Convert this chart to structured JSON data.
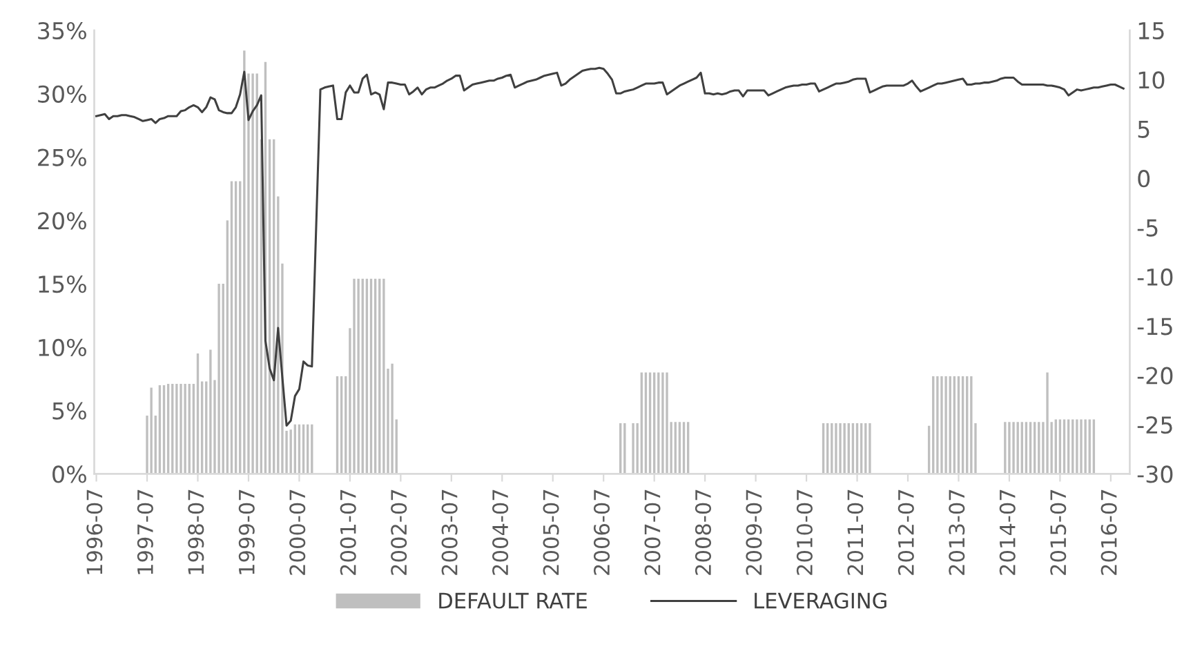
{
  "chart_data": {
    "type": "bar",
    "legend": "bottom",
    "categories": [
      "1996-07",
      null,
      null,
      null,
      null,
      null,
      null,
      null,
      null,
      null,
      null,
      null,
      "1997-07",
      null,
      null,
      null,
      null,
      null,
      null,
      null,
      null,
      null,
      null,
      null,
      "1998-07",
      null,
      null,
      null,
      null,
      null,
      null,
      null,
      null,
      null,
      null,
      null,
      "1999-07",
      null,
      null,
      null,
      null,
      null,
      null,
      null,
      null,
      null,
      null,
      null,
      "2000-07",
      null,
      null,
      null,
      null,
      null,
      null,
      null,
      null,
      null,
      null,
      null,
      "2001-07",
      null,
      null,
      null,
      null,
      null,
      null,
      null,
      null,
      null,
      null,
      null,
      "2002-07",
      null,
      null,
      null,
      null,
      null,
      null,
      null,
      null,
      null,
      null,
      null,
      "2003-07",
      null,
      null,
      null,
      null,
      null,
      null,
      null,
      null,
      null,
      null,
      null,
      "2004-07",
      null,
      null,
      null,
      null,
      null,
      null,
      null,
      null,
      null,
      null,
      null,
      "2005-07",
      null,
      null,
      null,
      null,
      null,
      null,
      null,
      null,
      null,
      null,
      null,
      "2006-07",
      null,
      null,
      null,
      null,
      null,
      null,
      null,
      null,
      null,
      null,
      null,
      "2007-07",
      null,
      null,
      null,
      null,
      null,
      null,
      null,
      null,
      null,
      null,
      null,
      "2008-07",
      null,
      null,
      null,
      null,
      null,
      null,
      null,
      null,
      null,
      null,
      null,
      "2009-07",
      null,
      null,
      null,
      null,
      null,
      null,
      null,
      null,
      null,
      null,
      null,
      "2010-07",
      null,
      null,
      null,
      null,
      null,
      null,
      null,
      null,
      null,
      null,
      null,
      "2011-07",
      null,
      null,
      null,
      null,
      null,
      null,
      null,
      null,
      null,
      null,
      null,
      "2012-07",
      null,
      null,
      null,
      null,
      null,
      null,
      null,
      null,
      null,
      null,
      null,
      "2013-07",
      null,
      null,
      null,
      null,
      null,
      null,
      null,
      null,
      null,
      null,
      null,
      "2014-07",
      null,
      null,
      null,
      null,
      null,
      null,
      null,
      null,
      null,
      null,
      null,
      "2015-07",
      null,
      null,
      null,
      null,
      null,
      null,
      null,
      null,
      null,
      null,
      null,
      "2016-07",
      null,
      null,
      null,
      null
    ],
    "ylim": [
      0,
      35
    ],
    "yticks": [
      {
        "value": 0,
        "label": "0%"
      },
      {
        "value": 5,
        "label": "5%"
      },
      {
        "value": 10,
        "label": "10%"
      },
      {
        "value": 15,
        "label": "15%"
      },
      {
        "value": 20,
        "label": "20%"
      },
      {
        "value": 25,
        "label": "25%"
      },
      {
        "value": 30,
        "label": "30%"
      },
      {
        "value": 35,
        "label": "35%"
      }
    ],
    "y2lim": [
      -30,
      15
    ],
    "y2ticks": [
      -30,
      -25,
      -20,
      -15,
      -10,
      -5,
      0,
      5,
      10,
      15
    ],
    "series": [
      {
        "name": "DEFAULT RATE",
        "color": "#bfbfbf",
        "values": [
          0,
          0,
          0,
          0,
          0,
          0,
          0,
          0,
          0,
          0,
          0,
          0,
          4.6,
          6.8,
          4.6,
          7.0,
          7.0,
          7.1,
          7.1,
          7.1,
          7.1,
          7.1,
          7.1,
          7.1,
          9.5,
          7.3,
          7.3,
          9.8,
          7.4,
          15.0,
          15.0,
          20.0,
          23.1,
          23.1,
          23.1,
          33.4,
          31.6,
          31.6,
          31.6,
          26.4,
          32.5,
          26.4,
          26.4,
          21.9,
          16.6,
          3.4,
          3.5,
          3.9,
          3.9,
          3.9,
          3.9,
          3.9,
          0,
          0,
          0,
          0,
          0,
          7.7,
          7.7,
          7.7,
          11.5,
          15.4,
          15.4,
          15.4,
          15.4,
          15.4,
          15.4,
          15.4,
          15.4,
          8.3,
          8.7,
          4.3,
          0,
          0,
          0,
          0,
          0,
          0,
          0,
          0,
          0,
          0,
          0,
          0,
          0,
          0,
          0,
          0,
          0,
          0,
          0,
          0,
          0,
          0,
          0,
          0,
          0,
          0,
          0,
          0,
          0,
          0,
          0,
          0,
          0,
          0,
          0,
          0,
          0,
          0,
          0,
          0,
          0,
          0,
          0,
          0,
          0,
          0,
          0,
          0,
          0,
          0,
          0,
          0,
          4.0,
          4.0,
          0,
          4.0,
          4.0,
          8.0,
          8.0,
          8.0,
          8.0,
          8.0,
          8.0,
          8.0,
          4.1,
          4.1,
          4.1,
          4.1,
          4.1,
          0,
          0,
          0,
          0,
          0,
          0,
          0,
          0,
          0,
          0,
          0,
          0,
          0,
          0,
          0,
          0,
          0,
          0,
          0,
          0,
          0,
          0,
          0,
          0,
          0,
          0,
          0,
          0,
          0,
          0,
          0,
          4.0,
          4.0,
          4.0,
          4.0,
          4.0,
          4.0,
          4.0,
          4.0,
          4.0,
          4.0,
          4.0,
          4.0,
          0,
          0,
          0,
          0,
          0,
          0,
          0,
          0,
          0,
          0,
          0,
          0,
          0,
          3.8,
          7.7,
          7.7,
          7.7,
          7.7,
          7.7,
          7.7,
          7.7,
          7.7,
          7.7,
          7.7,
          4.0,
          0,
          0,
          0,
          0,
          0,
          0,
          4.1,
          4.1,
          4.1,
          4.1,
          4.1,
          4.1,
          4.1,
          4.1,
          4.1,
          4.1,
          8.0,
          4.1,
          4.3,
          4.3,
          4.3,
          4.3,
          4.3,
          4.3,
          4.3,
          4.3,
          4.3,
          4.3,
          0,
          0,
          0,
          0,
          0,
          0,
          0,
          0
        ]
      },
      {
        "name": "LEVERAGING",
        "type": "line",
        "axis": "y2",
        "color": "#404040",
        "values": [
          6.3,
          6.4,
          6.5,
          6.0,
          6.3,
          6.3,
          6.4,
          6.4,
          6.3,
          6.2,
          6.0,
          5.8,
          5.9,
          6.0,
          5.6,
          6.0,
          6.1,
          6.3,
          6.3,
          6.3,
          6.8,
          6.9,
          7.2,
          7.4,
          7.2,
          6.7,
          7.2,
          8.2,
          8.0,
          6.9,
          6.7,
          6.6,
          6.6,
          7.2,
          8.5,
          10.8,
          5.9,
          6.8,
          7.4,
          8.4,
          -16.5,
          -19.3,
          -20.5,
          -15.2,
          -20.2,
          -25.1,
          -24.6,
          -22.1,
          -21.4,
          -18.6,
          -19.0,
          -19.1,
          -5.0,
          9.0,
          9.2,
          9.3,
          9.4,
          6.0,
          6.0,
          8.7,
          9.4,
          8.7,
          8.7,
          10.1,
          10.5,
          8.5,
          8.7,
          8.5,
          7.0,
          9.7,
          9.7,
          9.6,
          9.5,
          9.5,
          8.5,
          8.8,
          9.2,
          8.5,
          9.0,
          9.2,
          9.2,
          9.4,
          9.6,
          9.9,
          10.1,
          10.4,
          10.4,
          8.9,
          9.2,
          9.5,
          9.6,
          9.7,
          9.8,
          9.9,
          9.9,
          10.1,
          10.2,
          10.4,
          10.5,
          9.2,
          9.4,
          9.6,
          9.8,
          9.9,
          10.0,
          10.2,
          10.4,
          10.5,
          10.6,
          10.7,
          9.4,
          9.6,
          10.0,
          10.3,
          10.6,
          10.9,
          11.0,
          11.1,
          11.1,
          11.2,
          11.1,
          10.6,
          10.0,
          8.6,
          8.6,
          8.8,
          8.9,
          9.0,
          9.2,
          9.4,
          9.6,
          9.6,
          9.6,
          9.7,
          9.7,
          8.5,
          8.8,
          9.1,
          9.4,
          9.6,
          9.8,
          10.0,
          10.2,
          10.7,
          8.6,
          8.6,
          8.5,
          8.6,
          8.5,
          8.6,
          8.8,
          8.9,
          8.9,
          8.3,
          8.9,
          8.9,
          8.9,
          8.9,
          8.9,
          8.4,
          8.6,
          8.8,
          9.0,
          9.2,
          9.3,
          9.4,
          9.4,
          9.5,
          9.5,
          9.6,
          9.6,
          8.8,
          9.0,
          9.2,
          9.4,
          9.6,
          9.6,
          9.7,
          9.8,
          10.0,
          10.1,
          10.1,
          10.1,
          8.7,
          8.9,
          9.1,
          9.3,
          9.4,
          9.4,
          9.4,
          9.4,
          9.4,
          9.6,
          9.9,
          9.3,
          8.8,
          9.0,
          9.2,
          9.4,
          9.6,
          9.6,
          9.7,
          9.8,
          9.9,
          10.0,
          10.1,
          9.5,
          9.5,
          9.6,
          9.6,
          9.7,
          9.7,
          9.8,
          9.9,
          10.1,
          10.2,
          10.2,
          10.2,
          9.8,
          9.5,
          9.5,
          9.5,
          9.5,
          9.5,
          9.5,
          9.4,
          9.4,
          9.3,
          9.2,
          9.0,
          8.4,
          8.7,
          9.0,
          8.9,
          9.0,
          9.1,
          9.2,
          9.2,
          9.3,
          9.4,
          9.5,
          9.5,
          9.3,
          9.1,
          null
        ]
      }
    ]
  }
}
